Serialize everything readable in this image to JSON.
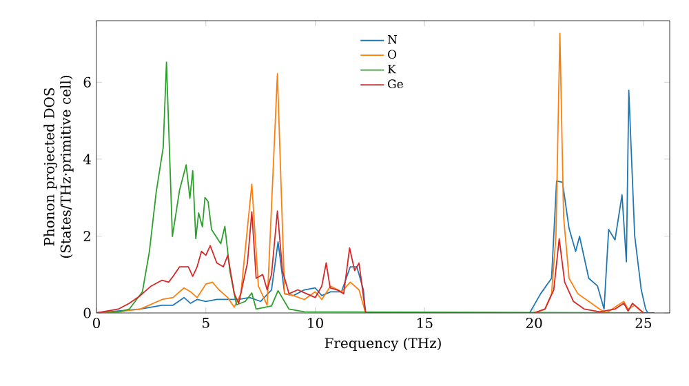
{
  "chart_data": {
    "type": "line",
    "xlabel": "Frequency (THz)",
    "ylabel": "Phonon projected DOS (States/THz·primitive cell)",
    "xlim": [
      0,
      26.2
    ],
    "ylim": [
      0,
      7.6
    ],
    "xticks": [
      0,
      5,
      10,
      15,
      20,
      25
    ],
    "yticks": [
      0,
      2,
      4,
      6
    ],
    "legend": "top",
    "series": [
      {
        "name": "N",
        "color": "#1f77b4",
        "x": [
          0,
          1,
          2,
          3,
          3.5,
          4,
          4.3,
          4.6,
          5,
          5.5,
          6,
          6.5,
          7,
          7.5,
          8,
          8.3,
          8.6,
          9,
          9.5,
          10,
          10.3,
          10.7,
          11.2,
          11.6,
          11.9,
          12.2,
          12.3,
          19.5,
          19.8,
          20.3,
          20.8,
          21.03,
          21.3,
          21.6,
          21.9,
          22.08,
          22.5,
          22.9,
          23.2,
          23.41,
          23.7,
          24.02,
          24.22,
          24.33,
          24.6,
          24.9,
          25.1,
          25.2,
          25.5
        ],
        "values": [
          0,
          0.05,
          0.1,
          0.2,
          0.2,
          0.4,
          0.25,
          0.35,
          0.3,
          0.35,
          0.35,
          0.35,
          0.4,
          0.3,
          0.6,
          1.85,
          0.5,
          0.45,
          0.6,
          0.65,
          0.45,
          0.55,
          0.55,
          1.2,
          1.2,
          0.6,
          0,
          0,
          0,
          0.5,
          0.9,
          3.43,
          3.4,
          2.2,
          1.6,
          1.99,
          0.9,
          0.7,
          0.1,
          2.17,
          1.9,
          3.07,
          1.33,
          5.79,
          2.0,
          0.6,
          0.1,
          0,
          0
        ]
      },
      {
        "name": "O",
        "color": "#ff7f0e",
        "x": [
          0,
          1,
          2,
          3,
          3.5,
          4,
          4.3,
          4.6,
          5,
          5.3,
          5.6,
          6,
          6.3,
          6.6,
          7.1,
          7.4,
          7.8,
          8.27,
          8.6,
          9,
          9.5,
          10,
          10.3,
          10.7,
          11.2,
          11.6,
          12,
          12.3,
          20,
          20.5,
          20.8,
          21,
          21.18,
          21.35,
          21.6,
          22,
          22.5,
          23,
          23.3,
          23.7,
          24.1,
          24.3,
          24.6,
          25,
          25.5
        ],
        "values": [
          0,
          0.03,
          0.1,
          0.35,
          0.4,
          0.65,
          0.55,
          0.4,
          0.75,
          0.8,
          0.6,
          0.4,
          0.15,
          0.5,
          3.35,
          0.7,
          0.2,
          6.22,
          0.5,
          0.45,
          0.35,
          0.55,
          0.35,
          0.7,
          0.55,
          0.8,
          0.6,
          0,
          0,
          0.1,
          0.5,
          2.0,
          7.27,
          2.5,
          0.9,
          0.5,
          0.3,
          0.1,
          0,
          0.15,
          0.3,
          0.1,
          0.2,
          0,
          0
        ]
      },
      {
        "name": "K",
        "color": "#2ca02c",
        "x": [
          0,
          1,
          1.5,
          2.1,
          2.42,
          2.73,
          3.05,
          3.2,
          3.47,
          3.8,
          4.1,
          4.27,
          4.4,
          4.54,
          4.67,
          4.84,
          4.96,
          5.1,
          5.26,
          5.68,
          5.87,
          6.1,
          6.4,
          6.8,
          7.1,
          7.3,
          8.0,
          8.3,
          8.8,
          9.5,
          25.5
        ],
        "values": [
          0,
          0.02,
          0.1,
          0.55,
          1.6,
          3.14,
          4.3,
          6.52,
          1.99,
          3.2,
          3.85,
          2.98,
          3.7,
          1.93,
          2.6,
          2.24,
          3.0,
          2.9,
          2.17,
          1.8,
          2.25,
          1.08,
          0.21,
          0.3,
          0.52,
          0.1,
          0.18,
          0.58,
          0.1,
          0.03,
          0
        ]
      },
      {
        "name": "Ge",
        "color": "#d62728",
        "x": [
          0,
          1,
          1.5,
          2,
          2.5,
          3,
          3.3,
          3.5,
          3.8,
          4.2,
          4.4,
          4.6,
          4.8,
          5,
          5.2,
          5.5,
          5.8,
          6,
          6.3,
          6.5,
          6.9,
          7.1,
          7.3,
          7.6,
          7.8,
          8,
          8.27,
          8.5,
          8.8,
          9.2,
          9.6,
          10,
          10.3,
          10.5,
          10.68,
          11,
          11.3,
          11.57,
          11.8,
          12,
          12.3,
          20,
          20.5,
          20.9,
          21.15,
          21.4,
          21.8,
          22.3,
          23,
          23.7,
          24.1,
          24.3,
          24.5,
          25,
          25.5
        ],
        "values": [
          0,
          0.1,
          0.25,
          0.45,
          0.7,
          0.85,
          0.8,
          0.95,
          1.2,
          1.2,
          0.95,
          1.2,
          1.6,
          1.5,
          1.75,
          1.3,
          1.2,
          1.5,
          0.5,
          0.25,
          1.3,
          2.63,
          0.9,
          1.0,
          0.6,
          1.0,
          2.65,
          1.1,
          0.5,
          0.6,
          0.5,
          0.4,
          0.7,
          1.3,
          0.65,
          0.6,
          0.5,
          1.69,
          1.1,
          1.3,
          0,
          0,
          0.1,
          0.6,
          1.93,
          0.8,
          0.3,
          0.1,
          0.03,
          0.1,
          0.25,
          0.05,
          0.25,
          0,
          0
        ]
      }
    ]
  }
}
